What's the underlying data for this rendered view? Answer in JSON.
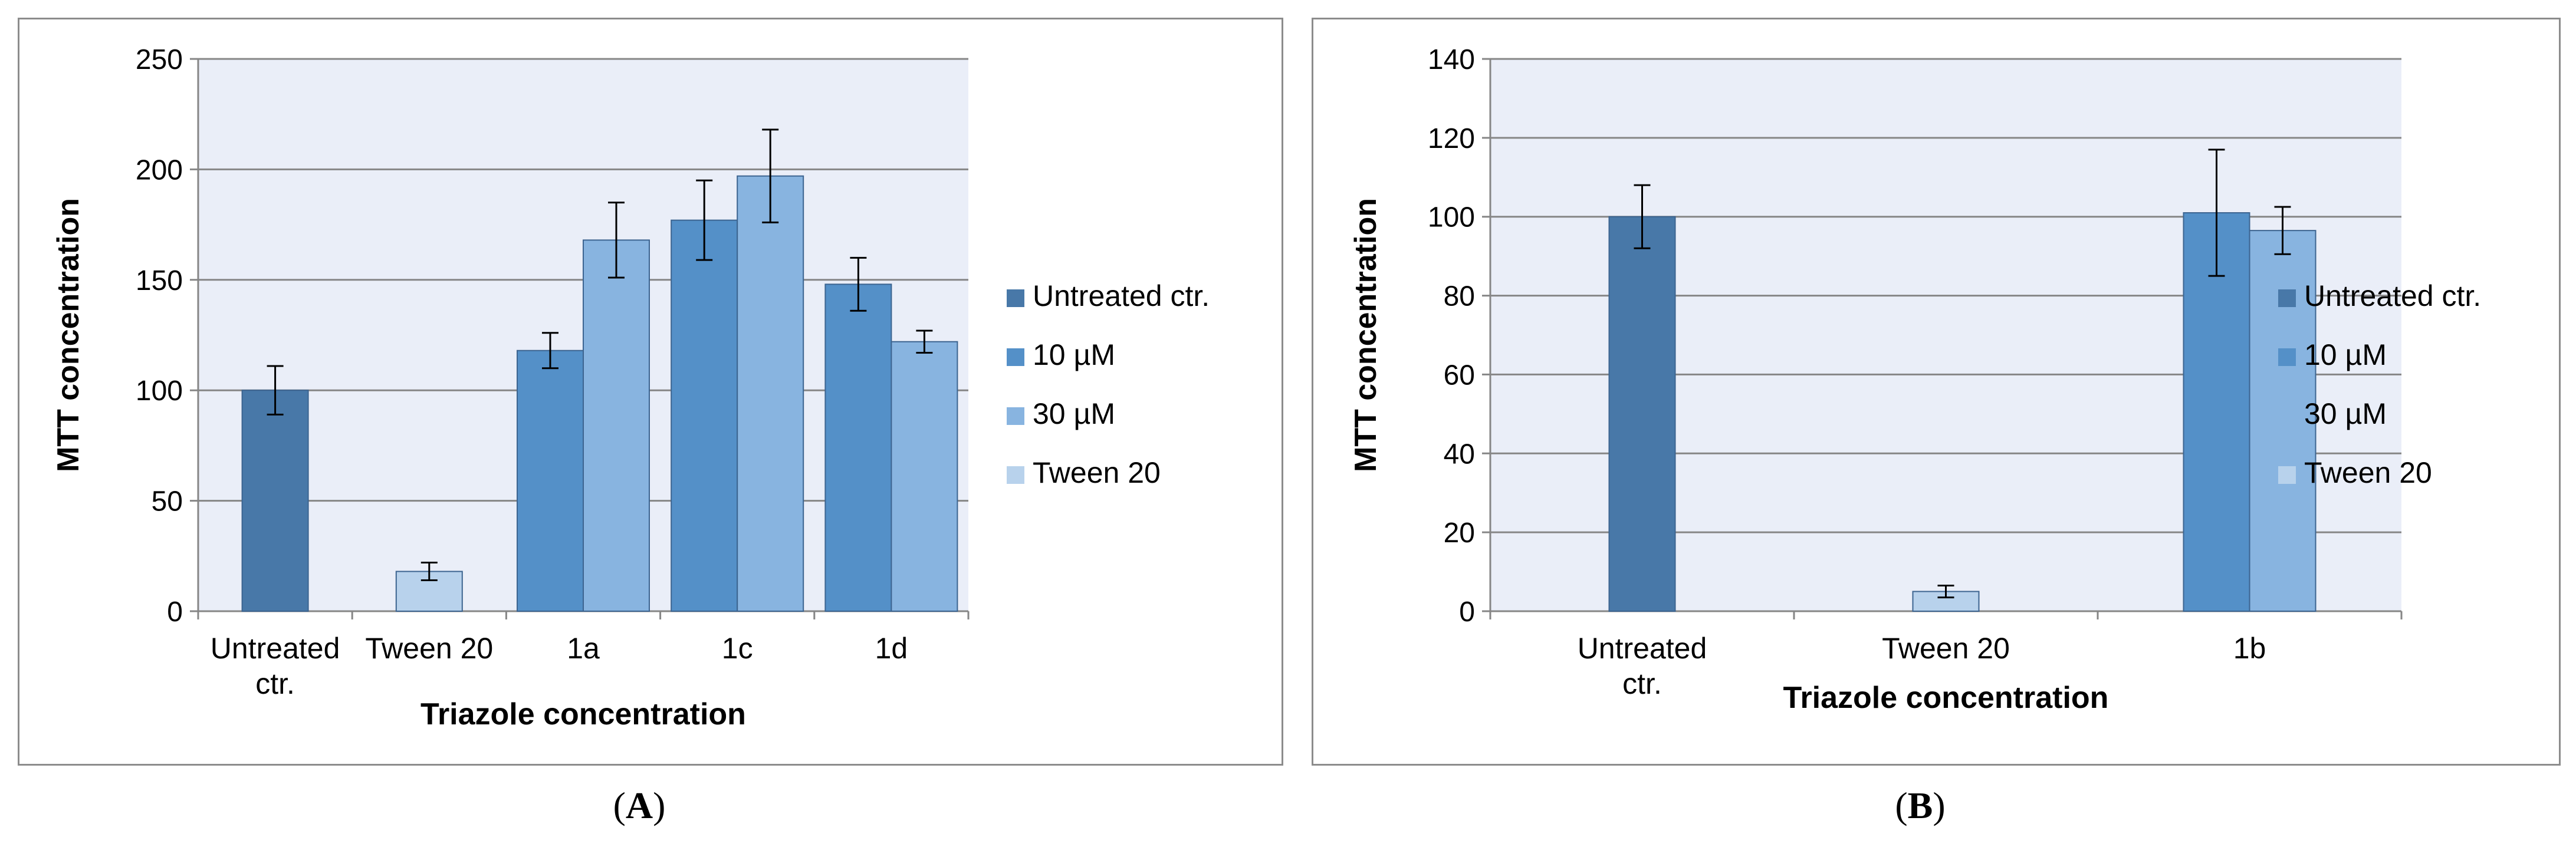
{
  "panels": [
    {
      "caption_open": "(",
      "caption_letter": "A",
      "caption_close": ")"
    },
    {
      "caption_open": "(",
      "caption_letter": "B",
      "caption_close": ")"
    }
  ],
  "chart_data": [
    {
      "type": "bar",
      "title": "",
      "xlabel": "Triazole concentration",
      "ylabel": "MTT concentration",
      "ylim": [
        0,
        250
      ],
      "yticks": [
        0,
        50,
        100,
        150,
        200,
        250
      ],
      "grid": true,
      "legend_position": "right",
      "categories": [
        [
          "Untreated",
          "ctr."
        ],
        [
          "Tween 20"
        ],
        [
          "1a"
        ],
        [
          "1c"
        ],
        [
          "1d"
        ]
      ],
      "series": [
        {
          "name": "Untreated ctr.",
          "color": "#4878a8",
          "values": [
            100,
            null,
            null,
            null,
            null
          ],
          "errors": [
            11,
            null,
            null,
            null,
            null
          ]
        },
        {
          "name": "10 µM",
          "color": "#5490c8",
          "values": [
            null,
            null,
            118,
            177,
            148
          ],
          "errors": [
            null,
            null,
            8,
            18,
            12
          ]
        },
        {
          "name": "30 µM",
          "color": "#88b4e0",
          "values": [
            null,
            null,
            168,
            197,
            122
          ],
          "errors": [
            null,
            null,
            17,
            21,
            5
          ]
        },
        {
          "name": "Tween 20",
          "color": "#b8d2ec",
          "values": [
            null,
            18,
            null,
            null,
            null
          ],
          "errors": [
            null,
            4,
            null,
            null,
            null
          ]
        }
      ]
    },
    {
      "type": "bar",
      "title": "",
      "xlabel": "Triazole concentration",
      "ylabel": "MTT concentration",
      "ylim": [
        0,
        140
      ],
      "yticks": [
        0,
        20,
        40,
        60,
        80,
        100,
        120,
        140
      ],
      "grid": true,
      "legend_position": "right",
      "categories": [
        [
          "Untreated",
          "ctr."
        ],
        [
          "Tween 20"
        ],
        [
          "1b"
        ]
      ],
      "series": [
        {
          "name": "Untreated ctr.",
          "color": "#4878a8",
          "values": [
            100,
            null,
            null
          ],
          "errors": [
            8,
            null,
            null
          ]
        },
        {
          "name": "10 µM",
          "color": "#5490c8",
          "values": [
            null,
            null,
            101
          ],
          "errors": [
            null,
            null,
            16
          ]
        },
        {
          "name": "30 µM",
          "color": "#88b4e0",
          "values": [
            null,
            null,
            96.5
          ],
          "errors": [
            null,
            null,
            6
          ]
        },
        {
          "name": "Tween 20",
          "color": "#b8d2ec",
          "values": [
            null,
            5,
            null
          ],
          "errors": [
            null,
            1.5,
            null
          ]
        }
      ]
    }
  ]
}
